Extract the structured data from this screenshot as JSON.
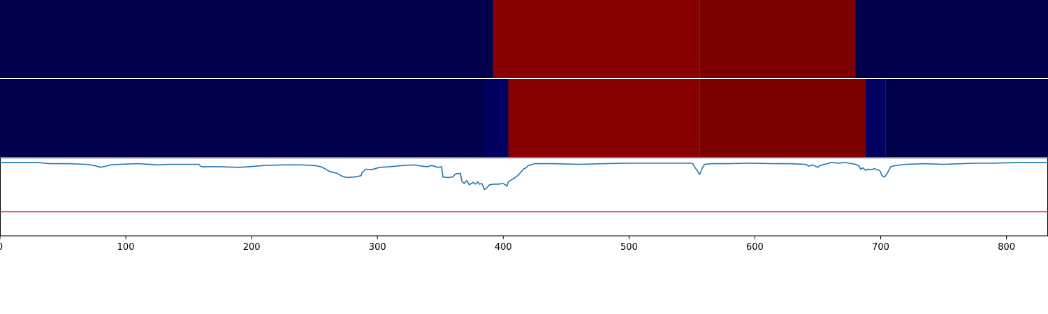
{
  "chart_data": {
    "type": "line",
    "xlim": [
      0,
      833
    ],
    "ylim": [
      -0.2,
      1.1
    ],
    "grid": false,
    "x_ticks": [
      0,
      100,
      200,
      300,
      400,
      500,
      600,
      700,
      800
    ],
    "x_tick_labels": [
      "0",
      "100",
      "200",
      "300",
      "400",
      "500",
      "600",
      "700",
      "800"
    ],
    "threshold": {
      "value": 0.2,
      "color": "#d62728"
    },
    "line_color": "#1f77b4",
    "heatmap_rows": [
      {
        "segments": [
          {
            "start": 0,
            "end": 392,
            "color": "#00004c"
          },
          {
            "start": 392,
            "end": 556,
            "color": "#880000"
          },
          {
            "start": 556,
            "end": 680,
            "color": "#7d0000"
          },
          {
            "start": 680,
            "end": 833,
            "color": "#00004c"
          }
        ]
      },
      {
        "segments": [
          {
            "start": 0,
            "end": 384,
            "color": "#00004c"
          },
          {
            "start": 384,
            "end": 404,
            "color": "#000060"
          },
          {
            "start": 404,
            "end": 556,
            "color": "#880000"
          },
          {
            "start": 556,
            "end": 688,
            "color": "#7d0000"
          },
          {
            "start": 688,
            "end": 704,
            "color": "#000060"
          },
          {
            "start": 704,
            "end": 833,
            "color": "#00004c"
          }
        ]
      }
    ],
    "series": [
      {
        "points": [
          [
            0,
            1.02
          ],
          [
            30,
            1.02
          ],
          [
            40,
            1.0
          ],
          [
            55,
            1.0
          ],
          [
            68,
            0.99
          ],
          [
            75,
            0.97
          ],
          [
            80,
            0.94
          ],
          [
            84,
            0.96
          ],
          [
            88,
            0.98
          ],
          [
            95,
            0.99
          ],
          [
            110,
            1.0
          ],
          [
            125,
            0.98
          ],
          [
            135,
            0.99
          ],
          [
            145,
            0.99
          ],
          [
            158,
            0.99
          ],
          [
            160,
            0.95
          ],
          [
            175,
            0.95
          ],
          [
            190,
            0.94
          ],
          [
            198,
            0.95
          ],
          [
            210,
            0.97
          ],
          [
            225,
            0.98
          ],
          [
            240,
            0.98
          ],
          [
            250,
            0.97
          ],
          [
            255,
            0.95
          ],
          [
            258,
            0.92
          ],
          [
            262,
            0.87
          ],
          [
            268,
            0.84
          ],
          [
            272,
            0.79
          ],
          [
            276,
            0.77
          ],
          [
            282,
            0.78
          ],
          [
            287,
            0.8
          ],
          [
            288,
            0.86
          ],
          [
            291,
            0.91
          ],
          [
            295,
            0.9
          ],
          [
            302,
            0.94
          ],
          [
            310,
            0.95
          ],
          [
            320,
            0.97
          ],
          [
            330,
            0.98
          ],
          [
            335,
            0.96
          ],
          [
            340,
            0.95
          ],
          [
            343,
            0.97
          ],
          [
            348,
            0.94
          ],
          [
            351,
            0.95
          ],
          [
            352,
            0.78
          ],
          [
            356,
            0.77
          ],
          [
            360,
            0.78
          ],
          [
            362,
            0.83
          ],
          [
            366,
            0.84
          ],
          [
            367,
            0.71
          ],
          [
            369,
            0.67
          ],
          [
            371,
            0.72
          ],
          [
            373,
            0.65
          ],
          [
            376,
            0.69
          ],
          [
            378,
            0.66
          ],
          [
            380,
            0.7
          ],
          [
            381,
            0.66
          ],
          [
            383,
            0.67
          ],
          [
            384,
            0.62
          ],
          [
            385,
            0.57
          ],
          [
            387,
            0.6
          ],
          [
            389,
            0.65
          ],
          [
            392,
            0.66
          ],
          [
            396,
            0.66
          ],
          [
            400,
            0.67
          ],
          [
            403,
            0.63
          ],
          [
            404,
            0.7
          ],
          [
            408,
            0.75
          ],
          [
            412,
            0.81
          ],
          [
            414,
            0.86
          ],
          [
            416,
            0.91
          ],
          [
            418,
            0.93
          ],
          [
            420,
            0.97
          ],
          [
            425,
            1.0
          ],
          [
            440,
            1.0
          ],
          [
            460,
            0.99
          ],
          [
            480,
            1.0
          ],
          [
            500,
            1.01
          ],
          [
            530,
            1.01
          ],
          [
            550,
            1.01
          ],
          [
            551,
            0.99
          ],
          [
            552,
            0.95
          ],
          [
            554,
            0.89
          ],
          [
            556,
            0.82
          ],
          [
            557,
            0.86
          ],
          [
            558,
            0.92
          ],
          [
            560,
            0.99
          ],
          [
            565,
            1.0
          ],
          [
            580,
            1.0
          ],
          [
            595,
            1.01
          ],
          [
            615,
            1.0
          ],
          [
            628,
            1.0
          ],
          [
            640,
            0.99
          ],
          [
            643,
            0.96
          ],
          [
            646,
            0.98
          ],
          [
            650,
            0.94
          ],
          [
            652,
            0.97
          ],
          [
            655,
            0.99
          ],
          [
            658,
            1.0
          ],
          [
            660,
            1.02
          ],
          [
            666,
            1.01
          ],
          [
            672,
            1.02
          ],
          [
            677,
            1.0
          ],
          [
            680,
            0.99
          ],
          [
            683,
            0.96
          ],
          [
            684,
            0.91
          ],
          [
            686,
            0.93
          ],
          [
            688,
            0.89
          ],
          [
            690,
            0.91
          ],
          [
            693,
            0.9
          ],
          [
            695,
            0.92
          ],
          [
            697,
            0.9
          ],
          [
            699,
            0.89
          ],
          [
            700,
            0.86
          ],
          [
            701,
            0.8
          ],
          [
            703,
            0.78
          ],
          [
            705,
            0.83
          ],
          [
            708,
            0.95
          ],
          [
            712,
            0.97
          ],
          [
            720,
            0.99
          ],
          [
            735,
            1.0
          ],
          [
            750,
            0.99
          ],
          [
            765,
            1.0
          ],
          [
            775,
            1.01
          ],
          [
            790,
            1.01
          ],
          [
            810,
            1.02
          ],
          [
            833,
            1.02
          ]
        ]
      }
    ]
  }
}
